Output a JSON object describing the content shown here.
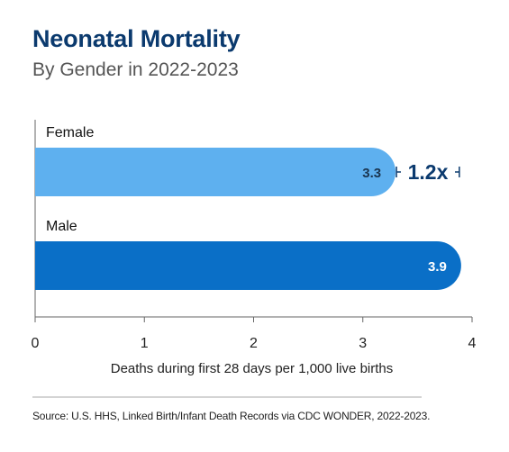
{
  "title": "Neonatal Mortality",
  "subtitle": "By Gender in 2022-2023",
  "source": "Source: U.S. HHS, Linked Birth/Infant Death Records via CDC WONDER, 2022-2023.",
  "chart_data": {
    "type": "bar",
    "orientation": "horizontal",
    "categories": [
      "Female",
      "Male"
    ],
    "values": [
      3.3,
      3.9
    ],
    "value_labels": [
      "3.3",
      "3.9"
    ],
    "bar_colors": [
      "#5eb0ef",
      "#0a6fc7"
    ],
    "xlabel": "Deaths during first 28 days per 1,000 live births",
    "xlim": [
      0,
      4
    ],
    "xticks": [
      "0",
      "1",
      "2",
      "3",
      "4"
    ],
    "annotation": {
      "text": "1.2x",
      "from": 3.3,
      "to": 3.9,
      "color": "#0b3a6e"
    },
    "grid": false
  }
}
